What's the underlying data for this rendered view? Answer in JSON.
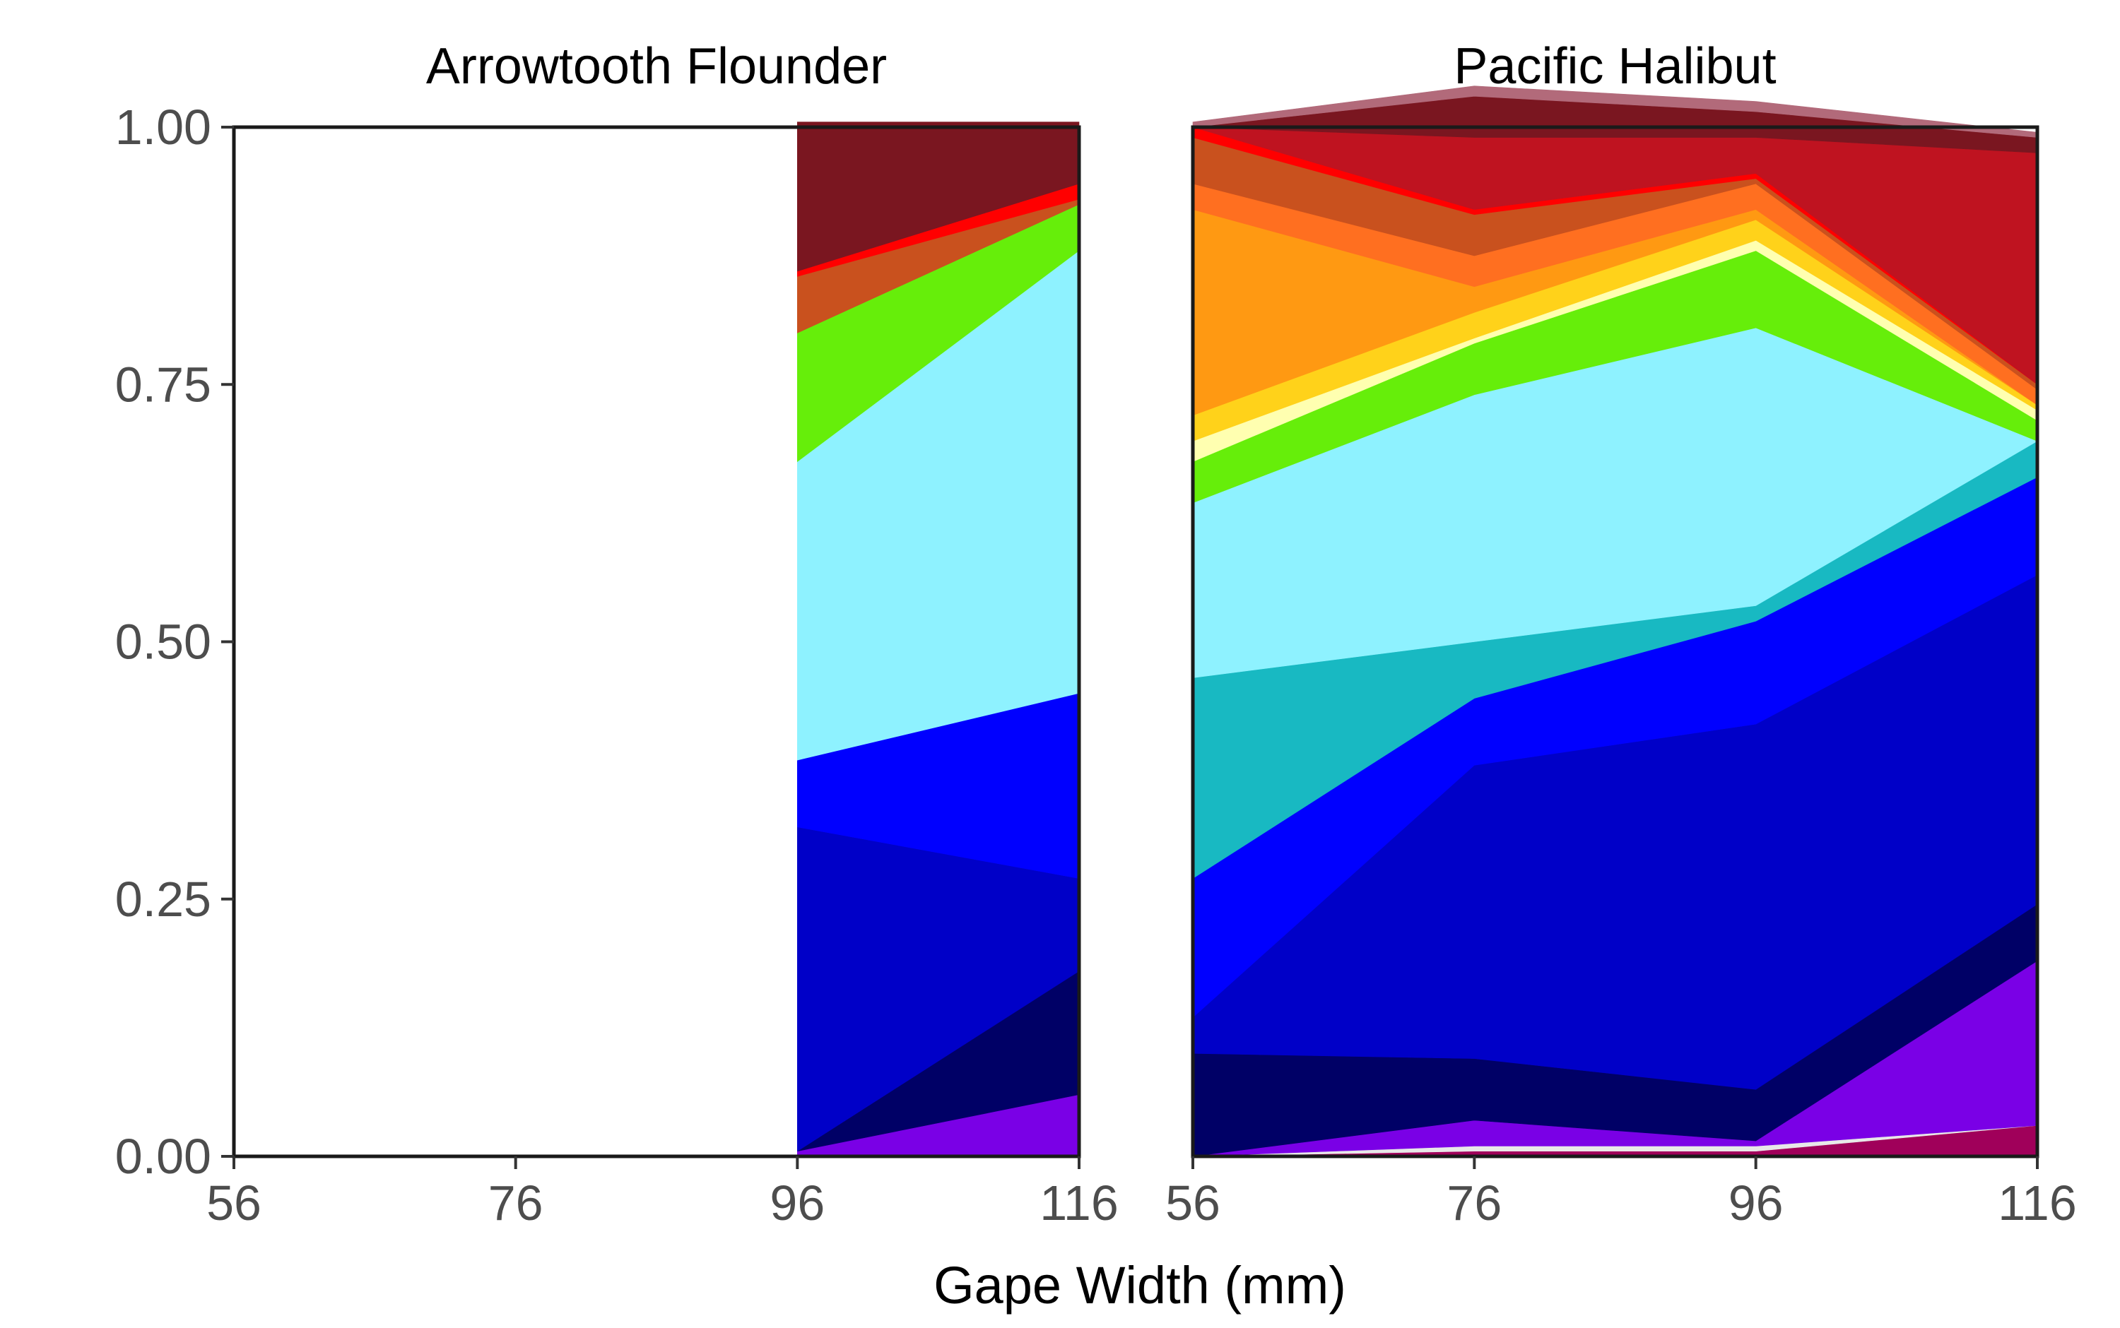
{
  "chart_data": {
    "type": "area",
    "xlabel": "Gape Width (mm)",
    "ylabel": "",
    "ylim": [
      0,
      1
    ],
    "yticks": [
      "0.00",
      "0.25",
      "0.50",
      "0.75",
      "1.00"
    ],
    "xticks": [
      "56",
      "76",
      "96",
      "116"
    ],
    "legend": "none",
    "grid": false,
    "panels": [
      {
        "title": "Arrowtooth Flounder",
        "x": [
          56,
          76,
          96,
          116
        ],
        "xlim": [
          56,
          116
        ],
        "series": [
          {
            "color": "#7a00e6",
            "values": [
              null,
              null,
              0.005,
              0.06
            ]
          },
          {
            "color": "#000066",
            "values": [
              null,
              null,
              0.0,
              0.12
            ]
          },
          {
            "color": "#0000c8",
            "values": [
              null,
              null,
              0.315,
              0.09
            ]
          },
          {
            "color": "#0000ff",
            "values": [
              null,
              null,
              0.065,
              0.18
            ]
          },
          {
            "color": "#8ef2ff",
            "values": [
              null,
              null,
              0.29,
              0.43
            ]
          },
          {
            "color": "#66ee0a",
            "values": [
              null,
              null,
              0.125,
              0.045
            ]
          },
          {
            "color": "#c9511e",
            "values": [
              null,
              null,
              0.055,
              0.005
            ]
          },
          {
            "color": "#ff0000",
            "values": [
              null,
              null,
              0.005,
              0.015
            ]
          },
          {
            "color": "#7a1620",
            "values": [
              null,
              null,
              0.145,
              0.06
            ]
          }
        ]
      },
      {
        "title": "Pacific Halibut",
        "x": [
          56,
          76,
          96,
          116
        ],
        "xlim": [
          56,
          116
        ],
        "series": [
          {
            "color": "#a0005a",
            "values": [
              0.0,
              0.005,
              0.005,
              0.03
            ]
          },
          {
            "color": "#e8e8e8",
            "values": [
              0.0,
              0.005,
              0.005,
              0.0
            ]
          },
          {
            "color": "#7a00e6",
            "values": [
              0.0,
              0.025,
              0.005,
              0.16
            ]
          },
          {
            "color": "#000066",
            "values": [
              0.1,
              0.06,
              0.05,
              0.055
            ]
          },
          {
            "color": "#0000c8",
            "values": [
              0.035,
              0.285,
              0.355,
              0.32
            ]
          },
          {
            "color": "#0000ff",
            "values": [
              0.135,
              0.065,
              0.1,
              0.095
            ]
          },
          {
            "color": "#18b9c2",
            "values": [
              0.195,
              0.055,
              0.015,
              0.035
            ]
          },
          {
            "color": "#8ef2ff",
            "values": [
              0.17,
              0.24,
              0.27,
              0.0
            ]
          },
          {
            "color": "#66ee0a",
            "values": [
              0.04,
              0.05,
              0.075,
              0.02
            ]
          },
          {
            "color": "#ffffb0",
            "values": [
              0.02,
              0.005,
              0.01,
              0.01
            ]
          },
          {
            "color": "#ffd21a",
            "values": [
              0.025,
              0.025,
              0.02,
              0.005
            ]
          },
          {
            "color": "#ff9912",
            "values": [
              0.2,
              0.025,
              0.01,
              0.0
            ]
          },
          {
            "color": "#ff6f20",
            "values": [
              0.025,
              0.03,
              0.025,
              0.015
            ]
          },
          {
            "color": "#c9511e",
            "values": [
              0.045,
              0.04,
              0.005,
              0.005
            ]
          },
          {
            "color": "#ff0000",
            "values": [
              0.01,
              0.005,
              0.005,
              0.0
            ]
          },
          {
            "color": "#bf1320",
            "values": [
              0.0,
              0.07,
              0.035,
              0.225
            ]
          },
          {
            "color": "#7a1620",
            "values": [
              0.0,
              0.04,
              0.025,
              0.015
            ]
          },
          {
            "color": "#b26a7a",
            "values": [
              0.005,
              0.01,
              0.01,
              0.005
            ]
          }
        ]
      }
    ]
  }
}
